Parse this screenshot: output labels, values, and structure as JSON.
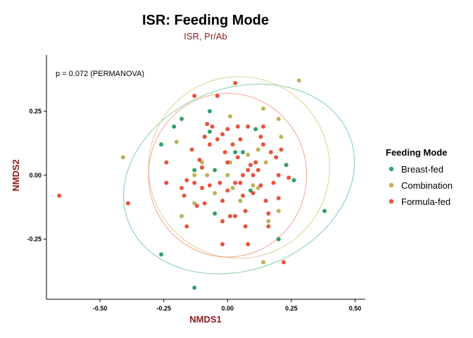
{
  "chart_data": {
    "type": "scatter",
    "title": "ISR: Feeding Mode",
    "subtitle": "ISR, Pr/Ab",
    "xlabel": "NMDS1",
    "ylabel": "NMDS2",
    "xlim": [
      -0.71,
      0.54
    ],
    "ylim": [
      -0.485,
      0.47
    ],
    "xticks": [
      -0.5,
      -0.25,
      0.0,
      0.25,
      0.5
    ],
    "xtick_labels": [
      "-0.50",
      "-0.25",
      "0.00",
      "0.25",
      "0.50"
    ],
    "yticks": [
      -0.25,
      0.0,
      0.25
    ],
    "ytick_labels": [
      "-0.25",
      "0.00",
      "0.25"
    ],
    "grid": false,
    "annotation": "p =  0.072 (PERMANOVA)",
    "legend": {
      "title": "Feeding Mode",
      "position": "right"
    },
    "series": [
      {
        "name": "Breast-fed",
        "color": "#35A066",
        "points": [
          [
            -0.26,
            0.12
          ],
          [
            -0.18,
            0.22
          ],
          [
            -0.21,
            0.19
          ],
          [
            -0.07,
            0.25
          ],
          [
            -0.07,
            0.17
          ],
          [
            0.03,
            0.09
          ],
          [
            0.06,
            0.09
          ],
          [
            0.11,
            0.18
          ],
          [
            0.23,
            0.04
          ],
          [
            0.26,
            -0.02
          ],
          [
            0.38,
            -0.14
          ],
          [
            0.2,
            -0.25
          ],
          [
            0.09,
            -0.06
          ],
          [
            -0.13,
            0.02
          ],
          [
            -0.1,
            0.03
          ],
          [
            -0.05,
            0.02
          ],
          [
            -0.26,
            -0.31
          ],
          [
            -0.13,
            -0.44
          ],
          [
            -0.05,
            -0.15
          ]
        ]
      },
      {
        "name": "Combination",
        "color": "#BFB15A",
        "points": [
          [
            -0.41,
            0.07
          ],
          [
            -0.2,
            0.13
          ],
          [
            -0.18,
            -0.16
          ],
          [
            -0.13,
            -0.11
          ],
          [
            -0.13,
            0.0
          ],
          [
            -0.1,
            0.05
          ],
          [
            0.01,
            0.23
          ],
          [
            0.14,
            0.26
          ],
          [
            0.28,
            0.37
          ],
          [
            0.2,
            0.22
          ],
          [
            0.21,
            0.15
          ],
          [
            0.16,
            -0.18
          ],
          [
            0.2,
            -0.14
          ],
          [
            0.14,
            -0.34
          ],
          [
            0.08,
            0.08
          ],
          [
            0.1,
            -0.04
          ],
          [
            0.0,
            0.0
          ],
          [
            -0.08,
            0.0
          ],
          [
            0.01,
            0.05
          ],
          [
            0.02,
            -0.05
          ],
          [
            0.12,
            0.1
          ],
          [
            0.15,
            0.05
          ],
          [
            0.05,
            -0.1
          ],
          [
            -0.05,
            -0.07
          ],
          [
            0.12,
            -0.05
          ]
        ]
      },
      {
        "name": "Formula-fed",
        "color": "#E8553E",
        "points": [
          [
            -0.66,
            -0.08
          ],
          [
            -0.39,
            -0.11
          ],
          [
            -0.24,
            0.05
          ],
          [
            -0.24,
            -0.03
          ],
          [
            -0.17,
            -0.08
          ],
          [
            -0.16,
            -0.2
          ],
          [
            -0.14,
            0.1
          ],
          [
            -0.13,
            -0.03
          ],
          [
            -0.11,
            0.06
          ],
          [
            -0.1,
            0.03
          ],
          [
            -0.1,
            -0.05
          ],
          [
            -0.09,
            -0.11
          ],
          [
            -0.08,
            0.2
          ],
          [
            -0.04,
            0.31
          ],
          [
            -0.04,
            0.14
          ],
          [
            -0.03,
            -0.03
          ],
          [
            -0.02,
            -0.1
          ],
          [
            -0.02,
            -0.18
          ],
          [
            -0.02,
            -0.27
          ],
          [
            0.0,
            0.05
          ],
          [
            0.01,
            -0.16
          ],
          [
            0.02,
            0.12
          ],
          [
            0.03,
            0.36
          ],
          [
            0.03,
            -0.03
          ],
          [
            0.04,
            0.19
          ],
          [
            0.05,
            0.14
          ],
          [
            0.06,
            0.0
          ],
          [
            0.06,
            -0.08
          ],
          [
            0.07,
            -0.14
          ],
          [
            0.08,
            0.19
          ],
          [
            0.09,
            0.04
          ],
          [
            0.1,
            -0.07
          ],
          [
            0.12,
            0.02
          ],
          [
            0.13,
            -0.04
          ],
          [
            0.14,
            0.19
          ],
          [
            0.15,
            -0.1
          ],
          [
            0.16,
            -0.2
          ],
          [
            0.17,
            0.09
          ],
          [
            0.19,
            0.07
          ],
          [
            0.2,
            0.0
          ],
          [
            0.21,
            0.1
          ],
          [
            0.22,
            -0.34
          ],
          [
            -0.13,
            0.31
          ],
          [
            0.08,
            -0.27
          ],
          [
            -0.06,
            0.19
          ],
          [
            -0.16,
            -0.02
          ],
          [
            0.0,
            0.18
          ],
          [
            -0.07,
            0.12
          ],
          [
            0.2,
            -0.09
          ],
          [
            0.13,
            0.15
          ],
          [
            -0.12,
            -0.12
          ],
          [
            0.04,
            0.07
          ],
          [
            0.08,
            0.02
          ],
          [
            0.0,
            -0.06
          ],
          [
            -0.07,
            -0.04
          ],
          [
            0.1,
            0.0
          ],
          [
            -0.02,
            0.16
          ],
          [
            0.05,
            -0.03
          ],
          [
            -0.09,
            0.15
          ],
          [
            0.14,
            0.12
          ],
          [
            -0.01,
            0.09
          ],
          [
            0.18,
            -0.03
          ],
          [
            0.24,
            -0.01
          ],
          [
            0.16,
            -0.15
          ],
          [
            0.03,
            -0.16
          ],
          [
            -0.18,
            -0.05
          ],
          [
            0.11,
            0.05
          ],
          [
            0.07,
            -0.2
          ]
        ]
      }
    ],
    "ellipses": [
      {
        "series": "Breast-fed",
        "color": "#7FD09E",
        "cx": 0.045,
        "cy": -0.015,
        "rx": 0.465,
        "ry": 0.355,
        "angle_deg": -21
      },
      {
        "series": "Combination",
        "color": "#DDCF95",
        "cx": 0.045,
        "cy": 0.03,
        "rx": 0.355,
        "ry": 0.355,
        "angle_deg": 0
      },
      {
        "series": "Formula-fed",
        "color": "#F4A38F",
        "cx": 0.0,
        "cy": 0.0,
        "rx": 0.31,
        "ry": 0.32,
        "angle_deg": 0
      }
    ]
  }
}
